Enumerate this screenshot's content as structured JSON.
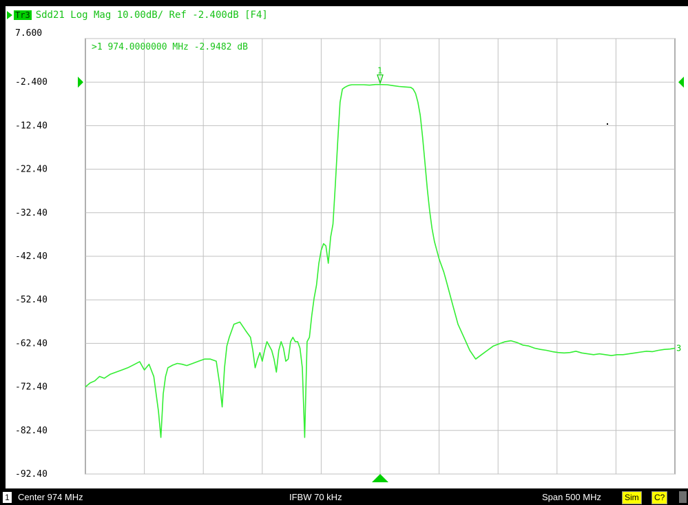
{
  "header": {
    "trace_id": "Tr3",
    "trace_text": "Sdd21 Log Mag 10.00dB/ Ref -2.400dB [F4]"
  },
  "marker_readout": ">1  974.0000000 MHz -2.9482 dB",
  "statusbar": {
    "channel": "1",
    "center": "Center 974 MHz",
    "ifbw": "IFBW 70 kHz",
    "span": "Span 500 MHz",
    "sim": "Sim",
    "cal": "C?"
  },
  "colors": {
    "trace": "#33ee33",
    "grid": "#c0c0c0",
    "label": "#00cc00"
  },
  "chart_data": {
    "type": "line",
    "x_unit": "MHz",
    "y_unit": "dB",
    "xlim": [
      724,
      1224
    ],
    "ylim": [
      -92.4,
      7.6
    ],
    "y_tick_labels": [
      "7.600",
      "-2.400",
      "-12.40",
      "-22.40",
      "-32.40",
      "-42.40",
      "-52.40",
      "-62.40",
      "-72.40",
      "-82.40",
      "-92.40"
    ],
    "y_ticks": [
      7.6,
      -2.4,
      -12.4,
      -22.4,
      -32.4,
      -42.4,
      -52.4,
      -62.4,
      -72.4,
      -82.4,
      -92.4
    ],
    "reference_level": -2.4,
    "grid": true,
    "trace_end_label": "3",
    "marker": {
      "label": "1",
      "x": 974,
      "y": -2.9482
    },
    "series": [
      {
        "x": [
          724,
          728,
          732,
          736,
          740,
          745,
          750,
          755,
          760,
          765,
          770,
          774,
          778,
          782,
          786,
          788,
          790,
          792,
          794,
          798,
          802,
          806,
          810,
          815,
          820,
          825,
          830,
          835,
          838,
          840,
          842,
          844,
          846,
          850,
          855,
          860,
          864,
          866,
          868,
          870,
          872,
          874,
          876,
          878,
          880,
          882,
          884,
          886,
          888,
          890,
          892,
          894,
          896,
          898,
          900,
          902,
          904,
          906,
          908,
          910,
          912,
          914,
          916,
          918,
          920,
          922,
          924,
          926,
          928,
          930,
          932,
          934,
          936,
          938,
          940,
          942,
          944,
          946,
          948,
          950,
          955,
          960,
          965,
          970,
          974,
          980,
          985,
          990,
          995,
          1000,
          1002,
          1004,
          1006,
          1008,
          1010,
          1012,
          1014,
          1016,
          1018,
          1020,
          1022,
          1024,
          1026,
          1028,
          1030,
          1032,
          1034,
          1036,
          1038,
          1040,
          1045,
          1050,
          1055,
          1060,
          1065,
          1070,
          1075,
          1080,
          1085,
          1090,
          1095,
          1100,
          1105,
          1110,
          1115,
          1120,
          1125,
          1130,
          1135,
          1140,
          1145,
          1150,
          1155,
          1160,
          1165,
          1170,
          1175,
          1180,
          1185,
          1190,
          1195,
          1200,
          1205,
          1210,
          1215,
          1220,
          1224
        ],
        "y": [
          -72.4,
          -71.5,
          -71.0,
          -70.0,
          -70.4,
          -69.5,
          -69.0,
          -68.5,
          -68.0,
          -67.3,
          -66.6,
          -68.5,
          -67.2,
          -70.0,
          -78.0,
          -84.0,
          -74.0,
          -70.0,
          -68.0,
          -67.4,
          -67.0,
          -67.2,
          -67.5,
          -67.0,
          -66.5,
          -66.0,
          -66.0,
          -66.5,
          -72.0,
          -77.0,
          -68.0,
          -63.0,
          -61.0,
          -58.0,
          -57.5,
          -59.5,
          -61.0,
          -64.0,
          -68.0,
          -66.0,
          -64.5,
          -66.5,
          -64.0,
          -62.0,
          -63.0,
          -64.0,
          -66.0,
          -69.0,
          -64.0,
          -62.0,
          -63.5,
          -66.5,
          -66.0,
          -62.0,
          -61.0,
          -62.0,
          -62.0,
          -63.5,
          -68.0,
          -84.0,
          -62.0,
          -61.0,
          -56.0,
          -52.0,
          -49.0,
          -44.0,
          -41.0,
          -39.5,
          -40.0,
          -44.0,
          -38.0,
          -35.0,
          -26.0,
          -16.0,
          -7.0,
          -4.0,
          -3.6,
          -3.3,
          -3.1,
          -3.0,
          -3.0,
          -3.0,
          -3.1,
          -2.95,
          -2.9482,
          -3.0,
          -3.2,
          -3.4,
          -3.5,
          -3.6,
          -4.0,
          -5.0,
          -7.0,
          -10.0,
          -15.0,
          -21.0,
          -27.0,
          -32.0,
          -36.0,
          -39.0,
          -41.0,
          -43.0,
          -44.5,
          -46.0,
          -48.0,
          -50.0,
          -52.0,
          -54.0,
          -56.0,
          -58.0,
          -61.0,
          -64.0,
          -66.0,
          -65.0,
          -64.0,
          -63.0,
          -62.5,
          -62.0,
          -61.8,
          -62.2,
          -62.8,
          -63.0,
          -63.5,
          -63.8,
          -64.0,
          -64.3,
          -64.5,
          -64.6,
          -64.5,
          -64.2,
          -64.6,
          -64.8,
          -65.0,
          -64.8,
          -65.0,
          -65.2,
          -65.0,
          -65.0,
          -64.8,
          -64.6,
          -64.4,
          -64.2,
          -64.3,
          -64.0,
          -63.8,
          -63.7,
          -63.5
        ]
      }
    ]
  }
}
